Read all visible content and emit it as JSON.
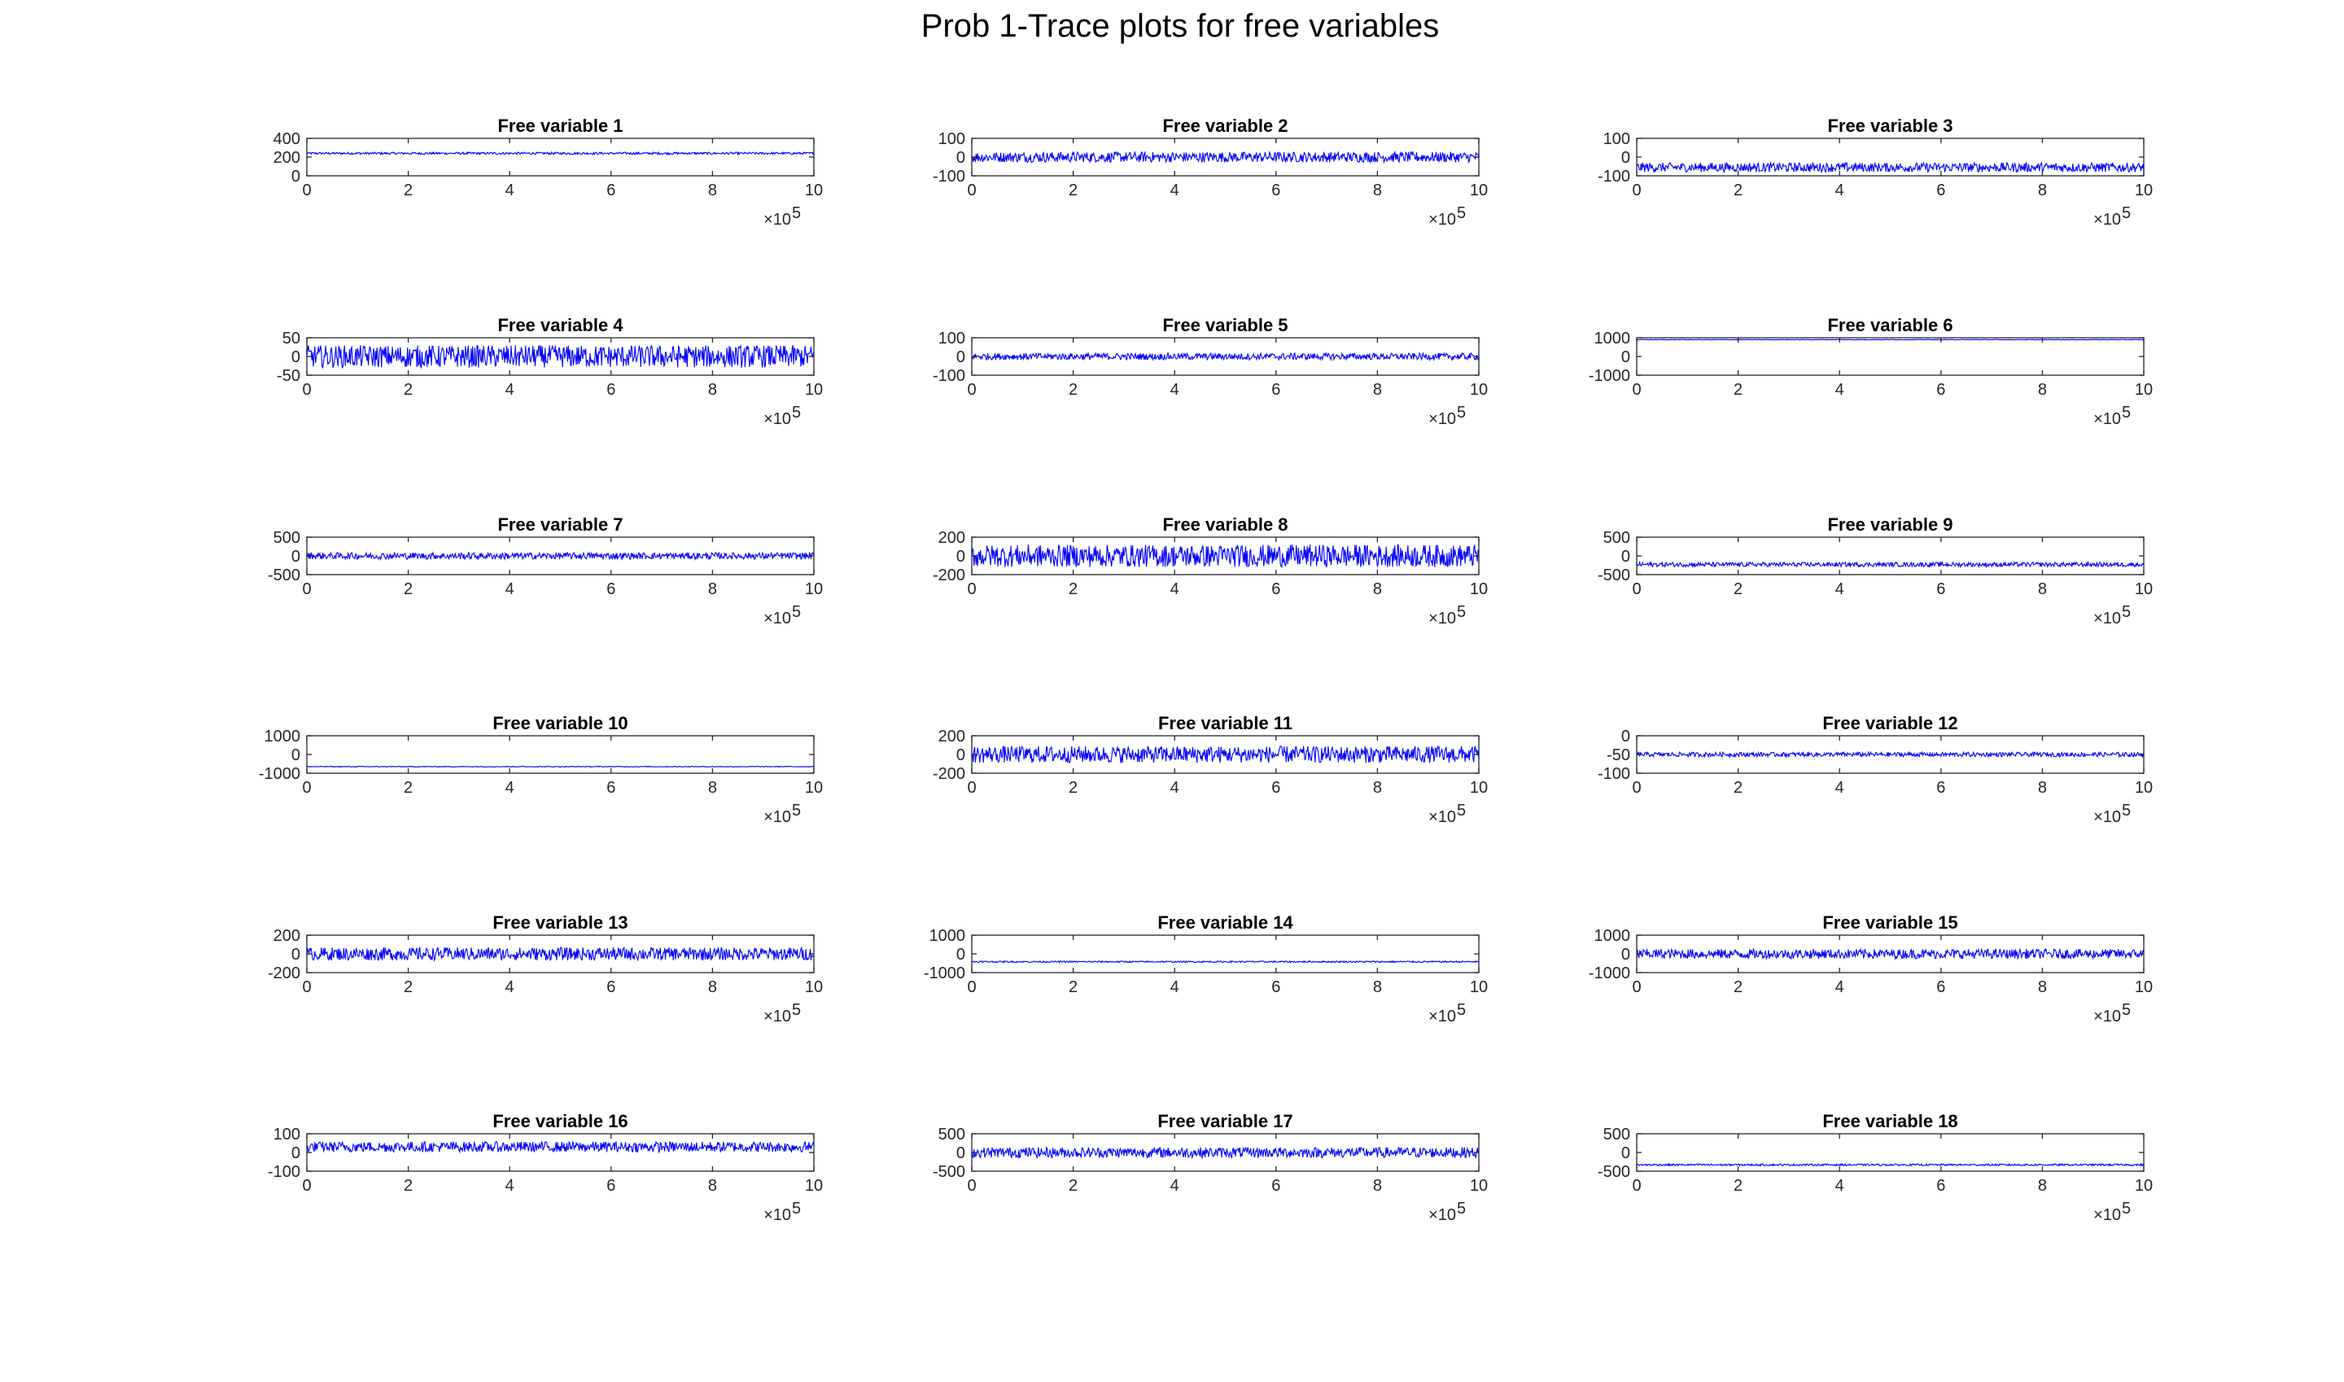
{
  "figure": {
    "title": "Prob 1-Trace plots for free variables"
  },
  "colors": {
    "trace": "#0000ff",
    "axes": "#262626",
    "background": "#ffffff"
  },
  "chart_data": [
    {
      "type": "line",
      "title": "Free variable 1",
      "xlim": [
        0,
        10
      ],
      "x_tick_labels": [
        "0",
        "2",
        "4",
        "6",
        "8",
        "10"
      ],
      "x_exponent": "×10",
      "x_exponent_power": "5",
      "ylim": [
        0,
        400
      ],
      "y_ticks": [
        0,
        200,
        400
      ],
      "y_tick_labels": [
        "0",
        "200",
        "400"
      ],
      "series": [
        {
          "values": [
            {
              "from": 0,
              "to": 10,
              "center": 240,
              "spread": 12,
              "style": "band"
            }
          ]
        }
      ]
    },
    {
      "type": "line",
      "title": "Free variable 2",
      "xlim": [
        0,
        10
      ],
      "x_tick_labels": [
        "0",
        "2",
        "4",
        "6",
        "8",
        "10"
      ],
      "x_exponent": "×10",
      "x_exponent_power": "5",
      "ylim": [
        -100,
        100
      ],
      "y_ticks": [
        -100,
        0,
        100
      ],
      "y_tick_labels": [
        "-100",
        "0",
        "100"
      ],
      "series": [
        {
          "values": [
            {
              "from": 0,
              "to": 10,
              "center": 0,
              "spread": 28,
              "style": "band"
            }
          ]
        }
      ]
    },
    {
      "type": "line",
      "title": "Free variable 3",
      "xlim": [
        0,
        10
      ],
      "x_tick_labels": [
        "0",
        "2",
        "4",
        "6",
        "8",
        "10"
      ],
      "x_exponent": "×10",
      "x_exponent_power": "5",
      "ylim": [
        -100,
        100
      ],
      "y_ticks": [
        -100,
        0,
        100
      ],
      "y_tick_labels": [
        "-100",
        "0",
        "100"
      ],
      "series": [
        {
          "values": [
            {
              "from": 0,
              "to": 10,
              "center": -55,
              "spread": 25,
              "style": "band"
            }
          ]
        }
      ]
    },
    {
      "type": "line",
      "title": "Free variable 4",
      "xlim": [
        0,
        10
      ],
      "x_tick_labels": [
        "0",
        "2",
        "4",
        "6",
        "8",
        "10"
      ],
      "x_exponent": "×10",
      "x_exponent_power": "5",
      "ylim": [
        -50,
        50
      ],
      "y_ticks": [
        -50,
        0,
        50
      ],
      "y_tick_labels": [
        "-50",
        "0",
        "50"
      ],
      "series": [
        {
          "values": [
            {
              "from": 0,
              "to": 10,
              "center": 0,
              "spread": 30,
              "style": "band"
            }
          ]
        }
      ]
    },
    {
      "type": "line",
      "title": "Free variable 5",
      "xlim": [
        0,
        10
      ],
      "x_tick_labels": [
        "0",
        "2",
        "4",
        "6",
        "8",
        "10"
      ],
      "x_exponent": "×10",
      "x_exponent_power": "5",
      "ylim": [
        -100,
        100
      ],
      "y_ticks": [
        -100,
        0,
        100
      ],
      "y_tick_labels": [
        "-100",
        "0",
        "100"
      ],
      "series": [
        {
          "values": [
            {
              "from": 0,
              "to": 10,
              "center": 0,
              "spread": 18,
              "style": "band"
            }
          ]
        }
      ]
    },
    {
      "type": "line",
      "title": "Free variable 6",
      "xlim": [
        0,
        10
      ],
      "x_tick_labels": [
        "0",
        "2",
        "4",
        "6",
        "8",
        "10"
      ],
      "x_exponent": "×10",
      "x_exponent_power": "5",
      "ylim": [
        -1000,
        1000
      ],
      "y_ticks": [
        -1000,
        0,
        1000
      ],
      "y_tick_labels": [
        "-1000",
        "0",
        "1000"
      ],
      "series": [
        {
          "values": [
            {
              "from": 0,
              "to": 10,
              "center": 900,
              "spread": 15,
              "style": "band"
            }
          ]
        }
      ]
    },
    {
      "type": "line",
      "title": "Free variable 7",
      "xlim": [
        0,
        10
      ],
      "x_tick_labels": [
        "0",
        "2",
        "4",
        "6",
        "8",
        "10"
      ],
      "x_exponent": "×10",
      "x_exponent_power": "5",
      "ylim": [
        -500,
        500
      ],
      "y_ticks": [
        -500,
        0,
        500
      ],
      "y_tick_labels": [
        "-500",
        "0",
        "500"
      ],
      "series": [
        {
          "values": [
            {
              "from": 0,
              "to": 10,
              "center": 0,
              "spread": 90,
              "style": "band"
            }
          ]
        }
      ]
    },
    {
      "type": "line",
      "title": "Free variable 8",
      "xlim": [
        0,
        10
      ],
      "x_tick_labels": [
        "0",
        "2",
        "4",
        "6",
        "8",
        "10"
      ],
      "x_exponent": "×10",
      "x_exponent_power": "5",
      "ylim": [
        -200,
        200
      ],
      "y_ticks": [
        -200,
        0,
        200
      ],
      "y_tick_labels": [
        "-200",
        "0",
        "200"
      ],
      "series": [
        {
          "values": [
            {
              "from": 0,
              "to": 10,
              "center": 0,
              "spread": 120,
              "style": "band"
            }
          ]
        }
      ]
    },
    {
      "type": "line",
      "title": "Free variable 9",
      "xlim": [
        0,
        10
      ],
      "x_tick_labels": [
        "0",
        "2",
        "4",
        "6",
        "8",
        "10"
      ],
      "x_exponent": "×10",
      "x_exponent_power": "5",
      "ylim": [
        -500,
        500
      ],
      "y_ticks": [
        -500,
        0,
        500
      ],
      "y_tick_labels": [
        "-500",
        "0",
        "500"
      ],
      "series": [
        {
          "values": [
            {
              "from": 0,
              "to": 10,
              "center": -230,
              "spread": 60,
              "style": "band"
            }
          ]
        }
      ]
    },
    {
      "type": "line",
      "title": "Free variable 10",
      "xlim": [
        0,
        10
      ],
      "x_tick_labels": [
        "0",
        "2",
        "4",
        "6",
        "8",
        "10"
      ],
      "x_exponent": "×10",
      "x_exponent_power": "5",
      "ylim": [
        -1000,
        1000
      ],
      "y_ticks": [
        -1000,
        0,
        1000
      ],
      "y_tick_labels": [
        "-1000",
        "0",
        "1000"
      ],
      "series": [
        {
          "values": [
            {
              "from": 0,
              "to": 10,
              "center": -650,
              "spread": 20,
              "style": "band"
            }
          ]
        }
      ]
    },
    {
      "type": "line",
      "title": "Free variable 11",
      "xlim": [
        0,
        10
      ],
      "x_tick_labels": [
        "0",
        "2",
        "4",
        "6",
        "8",
        "10"
      ],
      "x_exponent": "×10",
      "x_exponent_power": "5",
      "ylim": [
        -200,
        200
      ],
      "y_ticks": [
        -200,
        0,
        200
      ],
      "y_tick_labels": [
        "-200",
        "0",
        "200"
      ],
      "series": [
        {
          "values": [
            {
              "from": 0,
              "to": 10,
              "center": 0,
              "spread": 90,
              "style": "band"
            }
          ]
        }
      ]
    },
    {
      "type": "line",
      "title": "Free variable 12",
      "xlim": [
        0,
        10
      ],
      "x_tick_labels": [
        "0",
        "2",
        "4",
        "6",
        "8",
        "10"
      ],
      "x_exponent": "×10",
      "x_exponent_power": "5",
      "ylim": [
        -100,
        0
      ],
      "y_ticks": [
        -100,
        -50,
        0
      ],
      "y_tick_labels": [
        "-100",
        "-50",
        "0"
      ],
      "series": [
        {
          "values": [
            {
              "from": 0,
              "to": 10,
              "center": -50,
              "spread": 6,
              "style": "band"
            }
          ]
        }
      ]
    },
    {
      "type": "line",
      "title": "Free variable 13",
      "xlim": [
        0,
        10
      ],
      "x_tick_labels": [
        "0",
        "2",
        "4",
        "6",
        "8",
        "10"
      ],
      "x_exponent": "×10",
      "x_exponent_power": "5",
      "ylim": [
        -200,
        200
      ],
      "y_ticks": [
        -200,
        0,
        200
      ],
      "y_tick_labels": [
        "-200",
        "0",
        "200"
      ],
      "series": [
        {
          "values": [
            {
              "from": 0,
              "to": 10,
              "center": 0,
              "spread": 70,
              "style": "band"
            }
          ]
        }
      ]
    },
    {
      "type": "line",
      "title": "Free variable 14",
      "xlim": [
        0,
        10
      ],
      "x_tick_labels": [
        "0",
        "2",
        "4",
        "6",
        "8",
        "10"
      ],
      "x_exponent": "×10",
      "x_exponent_power": "5",
      "ylim": [
        -1000,
        1000
      ],
      "y_ticks": [
        -1000,
        0,
        1000
      ],
      "y_tick_labels": [
        "-1000",
        "0",
        "1000"
      ],
      "series": [
        {
          "values": [
            {
              "from": 0,
              "to": 10,
              "center": -420,
              "spread": 40,
              "style": "band"
            }
          ]
        }
      ]
    },
    {
      "type": "line",
      "title": "Free variable 15",
      "xlim": [
        0,
        10
      ],
      "x_tick_labels": [
        "0",
        "2",
        "4",
        "6",
        "8",
        "10"
      ],
      "x_exponent": "×10",
      "x_exponent_power": "5",
      "ylim": [
        -1000,
        1000
      ],
      "y_ticks": [
        -1000,
        0,
        1000
      ],
      "y_tick_labels": [
        "-1000",
        "0",
        "1000"
      ],
      "series": [
        {
          "values": [
            {
              "from": 0,
              "to": 10,
              "center": 0,
              "spread": 260,
              "style": "band"
            }
          ]
        }
      ]
    },
    {
      "type": "line",
      "title": "Free variable 16",
      "xlim": [
        0,
        10
      ],
      "x_tick_labels": [
        "0",
        "2",
        "4",
        "6",
        "8",
        "10"
      ],
      "x_exponent": "×10",
      "x_exponent_power": "5",
      "ylim": [
        -100,
        100
      ],
      "y_ticks": [
        -100,
        0,
        100
      ],
      "y_tick_labels": [
        "-100",
        "0",
        "100"
      ],
      "series": [
        {
          "values": [
            {
              "from": 0,
              "to": 10,
              "center": 30,
              "spread": 28,
              "style": "band"
            }
          ]
        }
      ]
    },
    {
      "type": "line",
      "title": "Free variable 17",
      "xlim": [
        0,
        10
      ],
      "x_tick_labels": [
        "0",
        "2",
        "4",
        "6",
        "8",
        "10"
      ],
      "x_exponent": "×10",
      "x_exponent_power": "5",
      "ylim": [
        -500,
        500
      ],
      "y_ticks": [
        -500,
        0,
        500
      ],
      "y_tick_labels": [
        "-500",
        "0",
        "500"
      ],
      "series": [
        {
          "values": [
            {
              "from": 0,
              "to": 10,
              "center": 0,
              "spread": 140,
              "style": "band"
            }
          ]
        }
      ]
    },
    {
      "type": "line",
      "title": "Free variable 18",
      "xlim": [
        0,
        10
      ],
      "x_tick_labels": [
        "0",
        "2",
        "4",
        "6",
        "8",
        "10"
      ],
      "x_exponent": "×10",
      "x_exponent_power": "5",
      "ylim": [
        -500,
        500
      ],
      "y_ticks": [
        -500,
        0,
        500
      ],
      "y_tick_labels": [
        "-500",
        "0",
        "500"
      ],
      "series": [
        {
          "values": [
            {
              "from": 0,
              "to": 10,
              "center": -330,
              "spread": 25,
              "style": "band"
            }
          ]
        }
      ]
    }
  ]
}
